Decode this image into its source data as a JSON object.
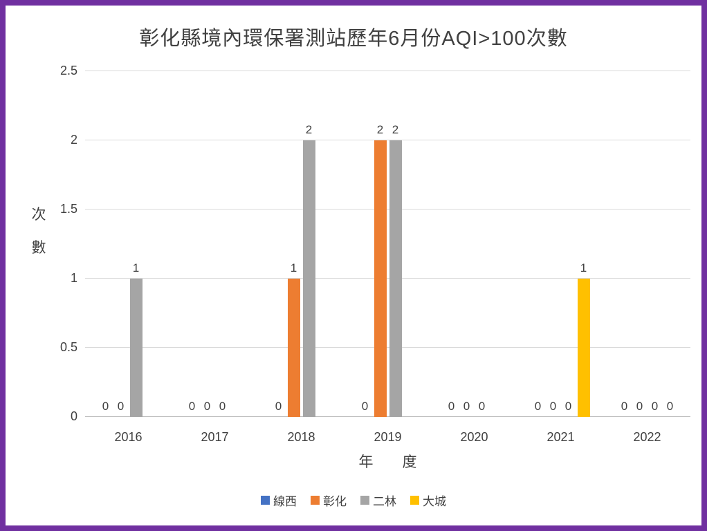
{
  "frame": {
    "border_color": "#7030A0",
    "background": "#FFFFFF"
  },
  "chart_data": {
    "type": "bar",
    "title": "彰化縣境內環保署測站歷年6月份AQI>100次數",
    "xlabel": "年　　度",
    "ylabel": "次數",
    "ylabel_chars": [
      "次",
      "數"
    ],
    "categories": [
      "2016",
      "2017",
      "2018",
      "2019",
      "2020",
      "2021",
      "2022"
    ],
    "series": [
      {
        "name": "線西",
        "color": "#4472C4",
        "values": [
          0,
          0,
          0,
          0,
          0,
          0,
          0
        ]
      },
      {
        "name": "彰化",
        "color": "#ED7D31",
        "values": [
          0,
          0,
          1,
          2,
          0,
          0,
          0
        ]
      },
      {
        "name": "二林",
        "color": "#A5A5A5",
        "values": [
          1,
          0,
          2,
          2,
          0,
          0,
          0
        ]
      },
      {
        "name": "大城",
        "color": "#FFC000",
        "values": [
          null,
          null,
          null,
          null,
          null,
          1,
          0
        ]
      }
    ],
    "ylim": [
      0,
      2.5
    ],
    "ytick_step": 0.5,
    "ytick_labels": [
      "0",
      "0.5",
      "1",
      "1.5",
      "2",
      "2.5"
    ],
    "grid": true,
    "legend_position": "bottom",
    "colors": {
      "grid": "#D9D9D9",
      "axis": "#BFBFBF",
      "text": "#404040"
    }
  }
}
